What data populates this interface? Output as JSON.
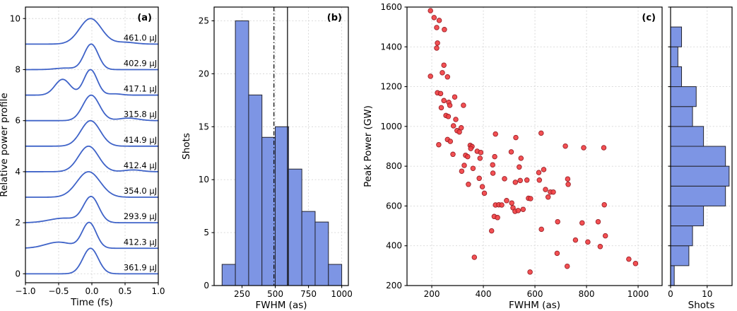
{
  "figure": {
    "background": "#ffffff"
  },
  "colors": {
    "line_blue": "#3f63c8",
    "hist_fill": "#7d95e4",
    "hist_edge": "#23232e",
    "scatter_fill": "#f23d40",
    "scatter_edge": "#9c2027",
    "grid": "#d6d6d6",
    "marker_line": "#111111",
    "axis": "#000000"
  },
  "chart_data": [
    {
      "panel": "a",
      "type": "line",
      "tag": "(a)",
      "xlabel": "Time (fs)",
      "ylabel": "Relative power profile",
      "xlim": [
        -1.0,
        1.0
      ],
      "ylim": [
        -0.35,
        10.45
      ],
      "xticks": [
        {
          "v": -1.0,
          "label": "−1.0"
        },
        {
          "v": -0.5,
          "label": "−0.5"
        },
        {
          "v": 0.0,
          "label": "0.0"
        },
        {
          "v": 0.5,
          "label": "0.5"
        },
        {
          "v": 1.0,
          "label": "1.0"
        }
      ],
      "yticks": [
        {
          "v": 0,
          "label": "0"
        },
        {
          "v": 2,
          "label": "2"
        },
        {
          "v": 4,
          "label": "4"
        },
        {
          "v": 6,
          "label": "6"
        },
        {
          "v": 8,
          "label": "8"
        },
        {
          "v": 10,
          "label": "10"
        }
      ],
      "traces": [
        {
          "label": "361.9 μJ",
          "offset": 0,
          "components": [
            [
              1.0,
              -0.02,
              0.115
            ]
          ]
        },
        {
          "label": "412.3 μJ",
          "offset": 1,
          "components": [
            [
              1.0,
              -0.04,
              0.105
            ],
            [
              0.24,
              -0.5,
              0.2
            ]
          ]
        },
        {
          "label": "293.9 μJ",
          "offset": 2,
          "components": [
            [
              1.0,
              -0.01,
              0.115
            ],
            [
              0.18,
              -0.42,
              0.22
            ]
          ]
        },
        {
          "label": "354.0 μJ",
          "offset": 3,
          "components": [
            [
              1.0,
              -0.05,
              0.175
            ]
          ]
        },
        {
          "label": "412.4 μJ",
          "offset": 4,
          "components": [
            [
              1.0,
              -0.05,
              0.15
            ],
            [
              0.07,
              0.62,
              0.13
            ]
          ]
        },
        {
          "label": "414.9 μJ",
          "offset": 5,
          "components": [
            [
              1.0,
              -0.02,
              0.145
            ]
          ]
        },
        {
          "label": "315.8 μJ",
          "offset": 6,
          "components": [
            [
              1.0,
              -0.01,
              0.125
            ],
            [
              0.1,
              0.55,
              0.15
            ]
          ]
        },
        {
          "label": "417.1 μJ",
          "offset": 7,
          "components": [
            [
              1.0,
              -0.02,
              0.1
            ],
            [
              0.62,
              -0.44,
              0.115
            ],
            [
              0.05,
              0.35,
              0.1
            ]
          ]
        },
        {
          "label": "402.9 μJ",
          "offset": 8,
          "components": [
            [
              1.0,
              -0.01,
              0.105
            ],
            [
              0.06,
              -0.4,
              0.15
            ]
          ]
        },
        {
          "label": "461.0 μJ",
          "offset": 9,
          "components": [
            [
              1.0,
              -0.02,
              0.165
            ],
            [
              0.07,
              0.5,
              0.15
            ]
          ]
        }
      ]
    },
    {
      "panel": "b",
      "type": "histogram",
      "tag": "(b)",
      "xlabel": "FWHM (as)",
      "ylabel": "Shots",
      "xlim": [
        40,
        1050
      ],
      "ylim": [
        0,
        26.3
      ],
      "bin_edges": [
        100,
        200,
        300,
        400,
        500,
        600,
        700,
        800,
        900,
        1000
      ],
      "counts": [
        2,
        25,
        18,
        14,
        15,
        11,
        7,
        6,
        2
      ],
      "marker_lines": [
        {
          "value": 490,
          "style": "dashdot"
        },
        {
          "value": 592,
          "style": "solid"
        }
      ],
      "xticks": [
        {
          "v": 250,
          "label": "250"
        },
        {
          "v": 500,
          "label": "500"
        },
        {
          "v": 750,
          "label": "750"
        },
        {
          "v": 1000,
          "label": "1000"
        }
      ],
      "yticks": [
        {
          "v": 0,
          "label": "0"
        },
        {
          "v": 5,
          "label": "5"
        },
        {
          "v": 10,
          "label": "10"
        },
        {
          "v": 15,
          "label": "15"
        },
        {
          "v": 20,
          "label": "20"
        },
        {
          "v": 25,
          "label": "25"
        }
      ]
    },
    {
      "panel": "c",
      "type": "scatter",
      "tag": "(c)",
      "xlabel": "FWHM (as)",
      "ylabel": "Peak Power (GW)",
      "xlim": [
        104,
        1093
      ],
      "ylim": [
        200,
        1600
      ],
      "xticks": [
        {
          "v": 200,
          "label": "200"
        },
        {
          "v": 400,
          "label": "400"
        },
        {
          "v": 600,
          "label": "600"
        },
        {
          "v": 800,
          "label": "800"
        },
        {
          "v": 1000,
          "label": "1000"
        }
      ],
      "yticks": [
        {
          "v": 200,
          "label": "200"
        },
        {
          "v": 400,
          "label": "400"
        },
        {
          "v": 600,
          "label": "600"
        },
        {
          "v": 800,
          "label": "800"
        },
        {
          "v": 1000,
          "label": "1000"
        },
        {
          "v": 1200,
          "label": "1200"
        },
        {
          "v": 1400,
          "label": "1400"
        },
        {
          "v": 1600,
          "label": "1600"
        }
      ],
      "points": [
        [
          195,
          1582
        ],
        [
          209,
          1547
        ],
        [
          229,
          1533
        ],
        [
          219,
          1497
        ],
        [
          249,
          1487
        ],
        [
          222,
          1419
        ],
        [
          219,
          1394
        ],
        [
          247,
          1308
        ],
        [
          241,
          1270
        ],
        [
          261,
          1249
        ],
        [
          195,
          1252
        ],
        [
          222,
          1169
        ],
        [
          234,
          1165
        ],
        [
          289,
          1148
        ],
        [
          247,
          1130
        ],
        [
          266,
          1121
        ],
        [
          270,
          1106
        ],
        [
          237,
          1094
        ],
        [
          323,
          1106
        ],
        [
          255,
          1055
        ],
        [
          264,
          1050
        ],
        [
          293,
          1035
        ],
        [
          284,
          1003
        ],
        [
          314,
          993
        ],
        [
          298,
          979
        ],
        [
          307,
          972
        ],
        [
          447,
          962
        ],
        [
          624,
          966
        ],
        [
          526,
          944
        ],
        [
          261,
          934
        ],
        [
          272,
          925
        ],
        [
          227,
          908
        ],
        [
          349,
          905
        ],
        [
          356,
          899
        ],
        [
          351,
          889
        ],
        [
          376,
          875
        ],
        [
          390,
          869
        ],
        [
          282,
          860
        ],
        [
          331,
          855
        ],
        [
          339,
          848
        ],
        [
          387,
          840
        ],
        [
          444,
          848
        ],
        [
          508,
          872
        ],
        [
          546,
          840
        ],
        [
          718,
          901
        ],
        [
          789,
          893
        ],
        [
          867,
          893
        ],
        [
          326,
          804
        ],
        [
          360,
          789
        ],
        [
          436,
          807
        ],
        [
          437,
          765
        ],
        [
          539,
          796
        ],
        [
          316,
          775
        ],
        [
          634,
          783
        ],
        [
          615,
          768
        ],
        [
          384,
          739
        ],
        [
          342,
          709
        ],
        [
          396,
          697
        ],
        [
          482,
          737
        ],
        [
          524,
          719
        ],
        [
          543,
          728
        ],
        [
          569,
          730
        ],
        [
          617,
          730
        ],
        [
          727,
          736
        ],
        [
          729,
          709
        ],
        [
          641,
          683
        ],
        [
          660,
          670
        ],
        [
          671,
          670
        ],
        [
          651,
          645
        ],
        [
          404,
          664
        ],
        [
          575,
          639
        ],
        [
          583,
          637
        ],
        [
          490,
          627
        ],
        [
          447,
          605
        ],
        [
          460,
          606
        ],
        [
          471,
          605
        ],
        [
          515,
          591
        ],
        [
          523,
          573
        ],
        [
          535,
          577
        ],
        [
          554,
          583
        ],
        [
          510,
          615
        ],
        [
          869,
          606
        ],
        [
          442,
          547
        ],
        [
          455,
          542
        ],
        [
          432,
          475
        ],
        [
          625,
          483
        ],
        [
          688,
          521
        ],
        [
          783,
          515
        ],
        [
          845,
          521
        ],
        [
          873,
          450
        ],
        [
          757,
          429
        ],
        [
          805,
          419
        ],
        [
          853,
          396
        ],
        [
          686,
          362
        ],
        [
          365,
          342
        ],
        [
          725,
          297
        ],
        [
          964,
          333
        ],
        [
          990,
          311
        ],
        [
          581,
          268
        ]
      ]
    },
    {
      "panel": "d",
      "type": "histogram-horizontal",
      "tag": "",
      "xlabel": "Shots",
      "ylabel": "",
      "xlim": [
        0,
        16.8
      ],
      "ylim": [
        200,
        1600
      ],
      "bin_edges": [
        200,
        300,
        400,
        500,
        600,
        700,
        800,
        900,
        1000,
        1100,
        1200,
        1300,
        1400,
        1500,
        1600
      ],
      "counts": [
        1,
        5,
        6,
        9,
        15,
        16,
        15,
        9,
        6,
        7,
        3,
        2,
        3,
        0
      ],
      "xticks": [
        {
          "v": 0,
          "label": "0"
        },
        {
          "v": 10,
          "label": "10"
        }
      ],
      "yticks": [
        {
          "v": 200,
          "label": ""
        },
        {
          "v": 400,
          "label": ""
        },
        {
          "v": 600,
          "label": ""
        },
        {
          "v": 800,
          "label": ""
        },
        {
          "v": 1000,
          "label": ""
        },
        {
          "v": 1200,
          "label": ""
        },
        {
          "v": 1400,
          "label": ""
        },
        {
          "v": 1600,
          "label": ""
        }
      ]
    }
  ]
}
